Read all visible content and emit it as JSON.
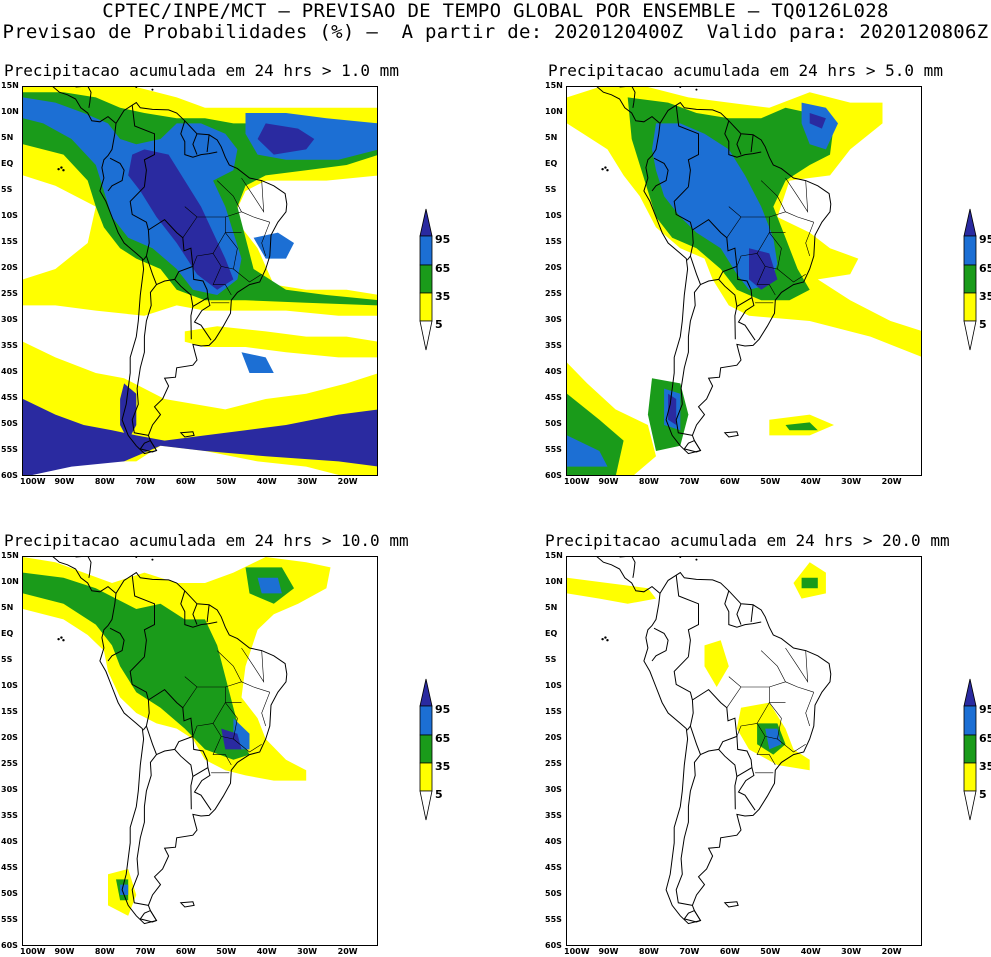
{
  "header": {
    "line1": "CPTEC/INPE/MCT — PREVISAO DE TEMPO GLOBAL POR ENSEMBLE — TQ0126L028",
    "line2": "Previsao de Probabilidades (%) —  A partir de: 2020120400Z  Valido para: 2020120806Z"
  },
  "legend_levels": [
    "95",
    "65",
    "35",
    "5"
  ],
  "colors": {
    "p5": "#ffff00",
    "p35": "#1a9b1a",
    "p65": "#1c6fd4",
    "p95": "#2a2aa0",
    "coast": "#000000"
  },
  "axes": {
    "lat_labels": [
      "15N",
      "10N",
      "5N",
      "EQ",
      "5S",
      "10S",
      "15S",
      "20S",
      "25S",
      "30S",
      "35S",
      "40S",
      "45S",
      "50S",
      "55S",
      "60S"
    ],
    "lon_labels": [
      "100W",
      "90W",
      "80W",
      "70W",
      "60W",
      "50W",
      "40W",
      "30W",
      "20W"
    ]
  },
  "panels": [
    {
      "title": "Precipitacao acumulada em 24 hrs > 1.0 mm"
    },
    {
      "title": "Precipitacao acumulada em 24 hrs > 5.0 mm"
    },
    {
      "title": "Precipitacao acumulada em 24 hrs > 10.0 mm"
    },
    {
      "title": "Precipitacao acumulada em 24 hrs > 20.0 mm"
    }
  ]
}
